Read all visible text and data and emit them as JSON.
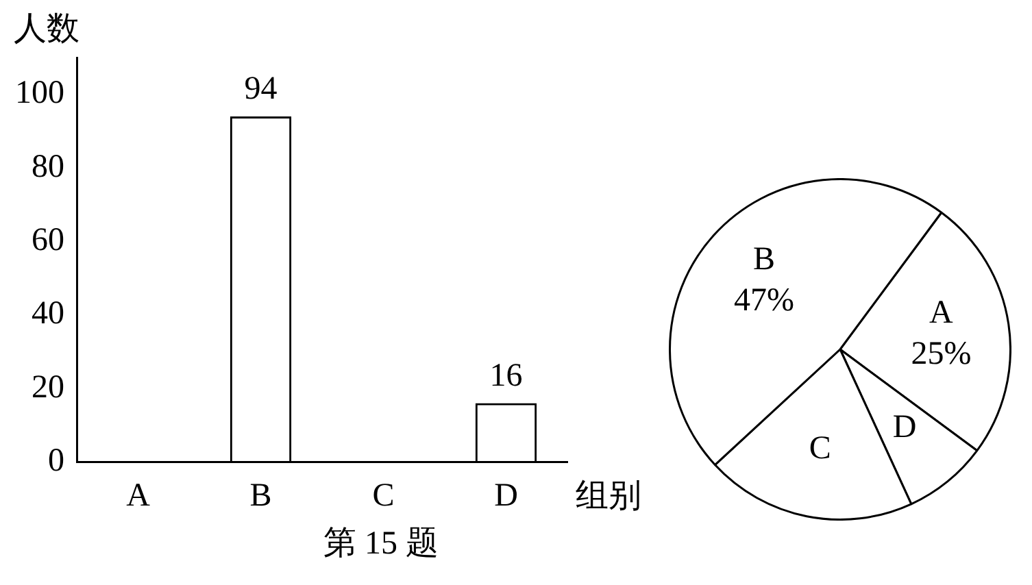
{
  "chart_data": [
    {
      "type": "bar",
      "xlabel": "组别",
      "ylabel": "人数",
      "categories": [
        "A",
        "B",
        "C",
        "D"
      ],
      "values": [
        null,
        94,
        null,
        16
      ],
      "color": "#000000",
      "ylim": [
        0,
        110
      ],
      "yticks": [
        0,
        20,
        40,
        60,
        80,
        100
      ],
      "grid": false,
      "legend": false,
      "data_labels": true,
      "annotations": [
        "第 15 题"
      ]
    },
    {
      "type": "pie",
      "categories": [
        "A",
        "D",
        "C",
        "B"
      ],
      "values": [
        25,
        8,
        20,
        47
      ],
      "colors": [
        "#ffffff",
        "#ffffff",
        "#ffffff",
        "#ffffff"
      ],
      "value_labels": [
        "25%",
        null,
        null,
        "47%"
      ],
      "legend": false
    }
  ]
}
